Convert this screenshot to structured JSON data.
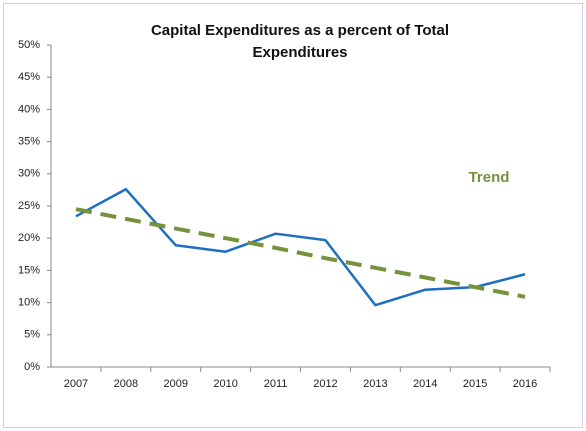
{
  "chart_data": {
    "type": "line",
    "title": "Capital Expenditures as a percent of Total Expenditures",
    "categories": [
      "2007",
      "2008",
      "2009",
      "2010",
      "2011",
      "2012",
      "2013",
      "2014",
      "2015",
      "2016"
    ],
    "series": [
      {
        "color": "#1f6fc0",
        "values": [
          23.4,
          27.6,
          18.9,
          17.9,
          20.7,
          19.7,
          9.6,
          12.0,
          12.4,
          14.4
        ]
      },
      {
        "name": "Trend",
        "color": "#76923c",
        "dashed": true,
        "values": [
          24.5,
          23.0,
          21.5,
          20.0,
          18.5,
          16.9,
          15.4,
          13.9,
          12.4,
          10.9
        ]
      }
    ],
    "ylim": [
      0,
      50
    ],
    "yticks": [
      {
        "value": 0,
        "label": "0%"
      },
      {
        "value": 5,
        "label": "5%"
      },
      {
        "value": 10,
        "label": "10%"
      },
      {
        "value": 15,
        "label": "15%"
      },
      {
        "value": 20,
        "label": "20%"
      },
      {
        "value": 25,
        "label": "25%"
      },
      {
        "value": 30,
        "label": "30%"
      },
      {
        "value": 35,
        "label": "35%"
      },
      {
        "value": 40,
        "label": "40%"
      },
      {
        "value": 45,
        "label": "45%"
      },
      {
        "value": 50,
        "label": "50%"
      }
    ],
    "grid": false
  }
}
